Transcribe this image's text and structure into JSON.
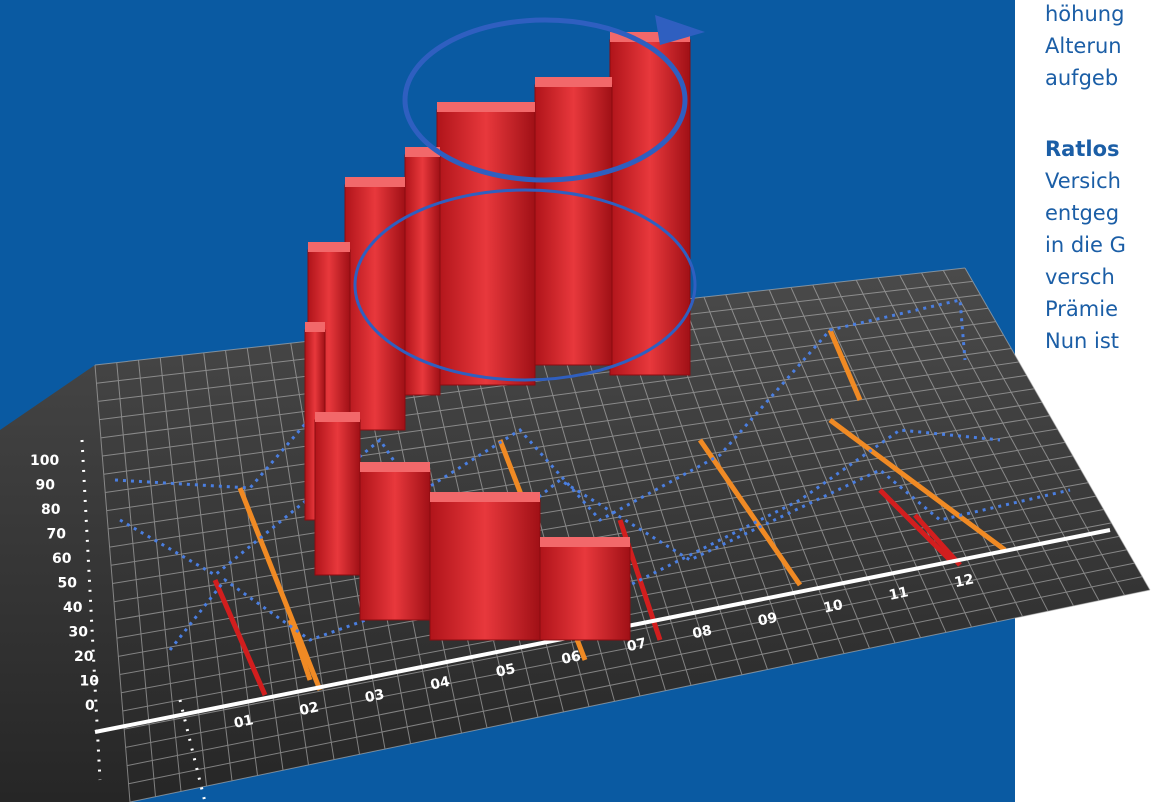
{
  "illustration": {
    "y_labels": [
      "100",
      "90",
      "80",
      "70",
      "60",
      "50",
      "40",
      "30",
      "20",
      "10",
      "0"
    ],
    "x_labels": [
      "01",
      "02",
      "03",
      "04",
      "05",
      "06",
      "07",
      "08",
      "09",
      "10",
      "11",
      "12"
    ]
  },
  "sidebar": {
    "lines": [
      "höhung",
      "Alterun",
      "aufgeb"
    ],
    "heading": "Ratlos",
    "paragraph": [
      "Versich",
      "entgeg",
      "in die G",
      "versch",
      "Prämie",
      "Nun ist"
    ]
  }
}
